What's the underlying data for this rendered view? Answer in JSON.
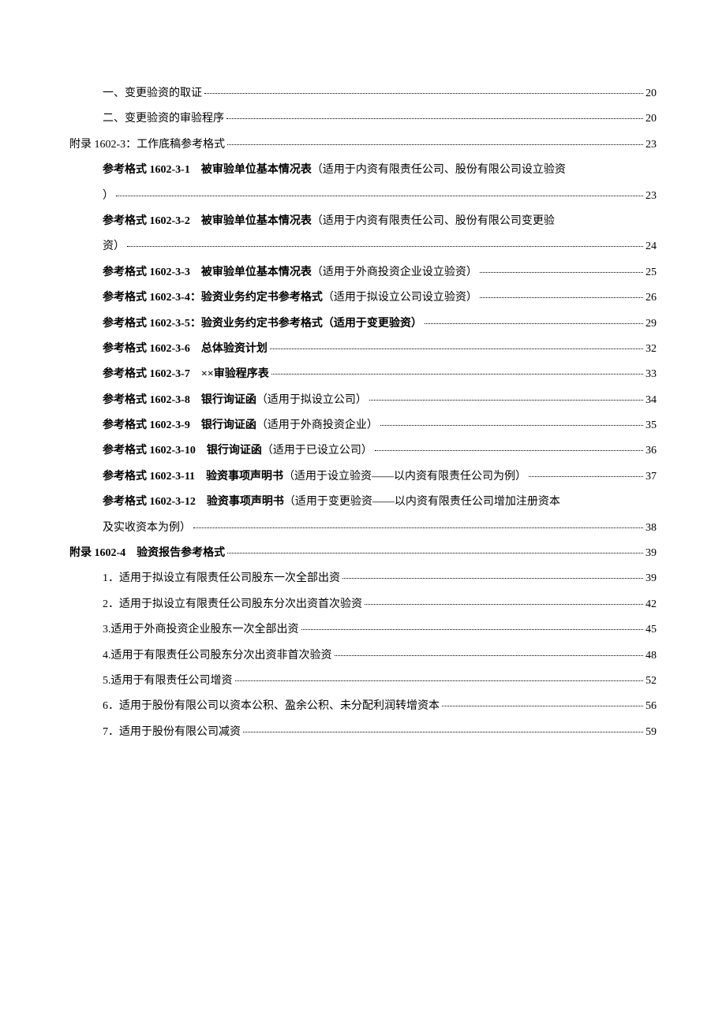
{
  "toc": {
    "entries": [
      {
        "type": "single",
        "indent": 1,
        "parts": [
          {
            "t": "一、变更验资的取证",
            "b": false
          }
        ],
        "page": "20"
      },
      {
        "type": "single",
        "indent": 1,
        "parts": [
          {
            "t": "二、变更验资的审验程序",
            "b": false
          }
        ],
        "page": "20"
      },
      {
        "type": "single",
        "indent": 0,
        "parts": [
          {
            "t": "附录 1602-3：工作底稿参考格式",
            "b": false
          }
        ],
        "page": "23"
      },
      {
        "type": "multi",
        "indent": 1,
        "line1": [
          {
            "t": "参考格式 1602-3-1　被审验单位基本情况表",
            "b": true
          },
          {
            "t": "（适用于内资有限责任公司、股份有限公司设立验资",
            "b": false
          }
        ],
        "line2": [
          {
            "t": "）",
            "b": false
          }
        ],
        "page": "23"
      },
      {
        "type": "multi",
        "indent": 1,
        "line1": [
          {
            "t": "参考格式 1602-3-2　被审验单位基本情况表",
            "b": true
          },
          {
            "t": "（适用于内资有限责任公司、股份有限公司变更验",
            "b": false
          }
        ],
        "line2": [
          {
            "t": "资）",
            "b": false
          }
        ],
        "page": "24"
      },
      {
        "type": "single",
        "indent": 1,
        "parts": [
          {
            "t": "参考格式 1602-3-3　被审验单位基本情况表",
            "b": true
          },
          {
            "t": "（适用于外商投资企业设立验资）",
            "b": false
          }
        ],
        "page": "25"
      },
      {
        "type": "single",
        "indent": 1,
        "parts": [
          {
            "t": "参考格式 1602-3-4：验资业务约定书参考格式",
            "b": true
          },
          {
            "t": "（适用于拟设立公司设立验资）",
            "b": false
          }
        ],
        "page": "26"
      },
      {
        "type": "single",
        "indent": 1,
        "parts": [
          {
            "t": "参考格式 1602-3-5：验资业务约定书参考格式（适用于变更验资）",
            "b": true
          }
        ],
        "page": "29"
      },
      {
        "type": "single",
        "indent": 1,
        "parts": [
          {
            "t": "参考格式 1602-3-6　总体验资计划",
            "b": true
          }
        ],
        "page": "32"
      },
      {
        "type": "single",
        "indent": 1,
        "parts": [
          {
            "t": "参考格式 1602-3-7　××审验程序表",
            "b": true
          }
        ],
        "page": "33"
      },
      {
        "type": "single",
        "indent": 1,
        "parts": [
          {
            "t": "参考格式 1602-3-8　银行询证函",
            "b": true
          },
          {
            "t": "（适用于拟设立公司）",
            "b": false
          }
        ],
        "page": "34"
      },
      {
        "type": "single",
        "indent": 1,
        "parts": [
          {
            "t": "参考格式 1602-3-9　银行询证函",
            "b": true
          },
          {
            "t": "（适用于外商投资企业）",
            "b": false
          }
        ],
        "page": "35"
      },
      {
        "type": "single",
        "indent": 1,
        "parts": [
          {
            "t": "参考格式 1602-3-10　银行询证函",
            "b": true
          },
          {
            "t": "（适用于已设立公司）",
            "b": false
          }
        ],
        "page": "36"
      },
      {
        "type": "single",
        "indent": 1,
        "parts": [
          {
            "t": "参考格式 1602-3-11　验资事项声明书",
            "b": true
          },
          {
            "t": "（适用于设立验资——以内资有限责任公司为例）",
            "b": false
          }
        ],
        "page": "37"
      },
      {
        "type": "multi",
        "indent": 1,
        "line1": [
          {
            "t": "参考格式 1602-3-12　验资事项声明书",
            "b": true
          },
          {
            "t": "（适用于变更验资——以内资有限责任公司增加注册资本",
            "b": false
          }
        ],
        "line2": [
          {
            "t": "及实收资本为例）",
            "b": false
          }
        ],
        "page": "38"
      },
      {
        "type": "single",
        "indent": 0,
        "parts": [
          {
            "t": "附录 1602-4　验资报告参考格式",
            "b": true
          }
        ],
        "page": "39"
      },
      {
        "type": "single",
        "indent": 1,
        "parts": [
          {
            "t": "1．适用于拟设立有限责任公司股东一次全部出资",
            "b": false
          }
        ],
        "page": "39"
      },
      {
        "type": "single",
        "indent": 1,
        "parts": [
          {
            "t": "2．适用于拟设立有限责任公司股东分次出资首次验资",
            "b": false
          }
        ],
        "page": "42"
      },
      {
        "type": "single",
        "indent": 1,
        "parts": [
          {
            "t": "3.适用于外商投资企业股东一次全部出资",
            "b": false
          }
        ],
        "page": "45"
      },
      {
        "type": "single",
        "indent": 1,
        "parts": [
          {
            "t": "4.适用于有限责任公司股东分次出资非首次验资",
            "b": false
          }
        ],
        "page": "48"
      },
      {
        "type": "single",
        "indent": 1,
        "parts": [
          {
            "t": "5.适用于有限责任公司增资",
            "b": false
          }
        ],
        "page": "52"
      },
      {
        "type": "single",
        "indent": 1,
        "parts": [
          {
            "t": "6．适用于股份有限公司以资本公积、盈余公积、未分配利润转增资本",
            "b": false
          }
        ],
        "page": "56"
      },
      {
        "type": "single",
        "indent": 1,
        "parts": [
          {
            "t": "7．适用于股份有限公司减资",
            "b": false
          }
        ],
        "page": "59"
      }
    ]
  }
}
